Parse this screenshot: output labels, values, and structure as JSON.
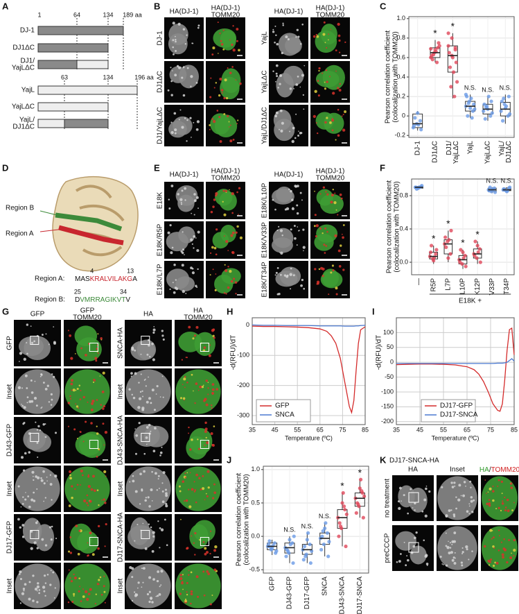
{
  "panel_labels": [
    "A",
    "B",
    "C",
    "D",
    "E",
    "F",
    "G",
    "H",
    "I",
    "J",
    "K"
  ],
  "panel_a": {
    "group1": {
      "positions": [
        "1",
        "64",
        "134",
        "189 aa"
      ],
      "rows": [
        [
          "DJ-1"
        ],
        [
          "DJ1ΔC"
        ],
        [
          "DJ1/",
          "YajLΔC"
        ]
      ]
    },
    "group2": {
      "positions": [
        "63",
        "134",
        "196 aa"
      ],
      "rows": [
        [
          "YajL"
        ],
        [
          "YajLΔC"
        ],
        [
          "YajL/",
          "DJ1ΔC"
        ]
      ]
    }
  },
  "panel_b": {
    "groups": [
      {
        "headers": [
          "HA(DJ-1)",
          "HA(DJ-1)",
          "TOMM20"
        ],
        "rows": [
          "DJ-1",
          "DJ1ΔC",
          "DJ1/YajLΔC"
        ]
      },
      {
        "headers": [
          "HA(DJ-1)",
          "HA(DJ-1)",
          "TOMM20"
        ],
        "rows": [
          "YajL",
          "YajLΔC",
          "YajL/DJ1ΔC"
        ]
      }
    ]
  },
  "panel_d": {
    "callouts": [
      "Region B",
      "Region A"
    ],
    "region_a": {
      "label": "Region A:",
      "start": "4",
      "end": "13",
      "seq": [
        "MAS",
        "KRALVILAKG",
        "A"
      ]
    },
    "region_b": {
      "label": "Region B:",
      "start": "25",
      "end": "34",
      "seq": [
        "D",
        "VMRRAGIKVT",
        "V"
      ]
    }
  },
  "panel_e": {
    "groups": [
      {
        "headers": [
          "HA(DJ-1)",
          "HA(DJ-1)",
          "TOMM20"
        ],
        "rows": [
          "E18K",
          "E18K/R5P",
          "E18K/L7P"
        ]
      },
      {
        "headers": [
          "HA(DJ-1)",
          "HA(DJ-1)",
          "TOMM20"
        ],
        "rows": [
          "E18K/L10P",
          "E18K/V33P",
          "E18K/T34P"
        ]
      }
    ]
  },
  "panel_g": {
    "groups": [
      {
        "headers": [
          "GFP",
          "GFP",
          "TOMM20"
        ],
        "rows": [
          "GFP",
          "Inset",
          "DJ43-GFP",
          "Inset",
          "DJ17-GFP",
          "Inset"
        ]
      },
      {
        "headers": [
          "HA",
          "HA",
          "TOMM20"
        ],
        "rows": [
          "SNCA-HA",
          "Inset",
          "DJ43-SNCA-HA",
          "Inset",
          "DJ17-SNCA-HA",
          "Inset"
        ]
      }
    ]
  },
  "panel_k": {
    "title": "DJ17-SNCA-HA",
    "headers": [
      "HA",
      "Inset",
      "HA",
      "/",
      "TOMM20"
    ],
    "rows": [
      "no treatment",
      "preCCCP"
    ]
  },
  "chart_data": [
    {
      "type": "box",
      "ylabel": [
        "Pearson correlation coefficient",
        "(colocalization with TOMM20)"
      ],
      "categories": [
        [
          "DJ-1"
        ],
        [
          "DJ1ΔC"
        ],
        [
          "DJ1/",
          "YajLΔC"
        ],
        [
          "YajL"
        ],
        [
          "YajLΔC"
        ],
        [
          "YajL/",
          "DJ1ΔC"
        ]
      ],
      "ylim": [
        -0.22,
        1.02
      ],
      "yticks": [
        -0.2,
        0,
        0.2,
        0.4,
        0.6,
        0.8,
        {
          "value": 1,
          "label": "1.0"
        }
      ],
      "grid": true,
      "annotations": [
        {
          "category": 1,
          "text": "*"
        },
        {
          "category": 2,
          "text": "*"
        },
        {
          "category": 3,
          "text": "N.S."
        },
        {
          "category": 4,
          "text": "N.S."
        },
        {
          "category": 5,
          "text": "N.S."
        }
      ],
      "boxes": [
        {
          "color": "#6b9be6",
          "whislo": -0.15,
          "q1": -0.12,
          "med": -0.08,
          "q3": 0.02,
          "whishi": 0.05,
          "points": [
            -0.12,
            -0.08,
            -0.05,
            -0.1,
            0.03,
            -0.14,
            -0.02,
            -0.09
          ]
        },
        {
          "color": "#e0475a",
          "whislo": 0.55,
          "q1": 0.6,
          "med": 0.65,
          "q3": 0.7,
          "whishi": 0.78,
          "points": [
            0.6,
            0.65,
            0.7,
            0.62,
            0.68,
            0.75,
            0.58,
            0.66,
            0.72,
            0.63,
            0.55,
            0.69
          ]
        },
        {
          "color": "#e0475a",
          "whislo": 0.18,
          "q1": 0.45,
          "med": 0.62,
          "q3": 0.72,
          "whishi": 0.85,
          "points": [
            0.85,
            0.8,
            0.7,
            0.65,
            0.6,
            0.55,
            0.5,
            0.45,
            0.35,
            0.3,
            0.2,
            0.72,
            0.62,
            0.68
          ]
        },
        {
          "color": "#6b9be6",
          "whislo": -0.02,
          "q1": 0.05,
          "med": 0.1,
          "q3": 0.15,
          "whishi": 0.22,
          "points": [
            0.1,
            0.15,
            0.05,
            0.2,
            0.08,
            0.12,
            0.0,
            0.18,
            0.07,
            0.13,
            -0.02,
            0.22
          ]
        },
        {
          "color": "#6b9be6",
          "whislo": -0.05,
          "q1": 0.02,
          "med": 0.07,
          "q3": 0.12,
          "whishi": 0.2,
          "points": [
            0.05,
            0.1,
            0.0,
            0.12,
            0.07,
            0.15,
            -0.03,
            0.2,
            0.03,
            0.09
          ]
        },
        {
          "color": "#6b9be6",
          "whislo": -0.08,
          "q1": 0.0,
          "med": 0.07,
          "q3": 0.14,
          "whishi": 0.22,
          "points": [
            0.05,
            0.12,
            0.0,
            0.15,
            0.08,
            0.2,
            -0.05,
            0.1,
            0.02,
            0.18
          ]
        }
      ]
    },
    {
      "type": "box",
      "ylabel": [
        "Pearson correlation coefficient",
        "(colocalization with TOMM20)"
      ],
      "xlabel": "E18K +",
      "categories": [
        [
          "—"
        ],
        [
          "R5P"
        ],
        [
          "L7P"
        ],
        [
          "L10P"
        ],
        [
          "K12P"
        ],
        [
          "V33P"
        ],
        [
          "T34P"
        ]
      ],
      "ylim": [
        -0.15,
        1.0
      ],
      "yticks": [
        {
          "value": 0,
          "label": "0.0"
        },
        0.4,
        0.8
      ],
      "grid": true,
      "annotations": [
        {
          "category": 1,
          "text": "*"
        },
        {
          "category": 2,
          "text": "*"
        },
        {
          "category": 3,
          "text": "*"
        },
        {
          "category": 4,
          "text": "*"
        },
        {
          "category": 5,
          "text": "N.S."
        },
        {
          "category": 6,
          "text": "N.S."
        }
      ],
      "boxes": [
        {
          "color": "#6b9be6",
          "whislo": 0.88,
          "q1": 0.89,
          "med": 0.9,
          "q3": 0.91,
          "whishi": 0.92,
          "points": [
            0.9,
            0.89,
            0.91,
            0.9,
            0.9,
            0.92,
            0.88,
            0.9
          ]
        },
        {
          "color": "#e0475a",
          "whislo": -0.02,
          "q1": 0.04,
          "med": 0.07,
          "q3": 0.12,
          "whishi": 0.2,
          "points": [
            0.07,
            0.04,
            0.1,
            0.12,
            0.02,
            0.15,
            0.2,
            0.06
          ]
        },
        {
          "color": "#e0475a",
          "whislo": 0.0,
          "q1": 0.1,
          "med": 0.22,
          "q3": 0.27,
          "whishi": 0.38,
          "points": [
            0.22,
            0.25,
            0.1,
            0.3,
            0.05,
            0.38,
            0.18,
            0.27
          ]
        },
        {
          "color": "#e0475a",
          "whislo": -0.08,
          "q1": -0.02,
          "med": 0.03,
          "q3": 0.08,
          "whishi": 0.15,
          "points": [
            0.03,
            -0.02,
            0.08,
            0.0,
            0.12,
            -0.05,
            0.15,
            0.05
          ]
        },
        {
          "color": "#e0475a",
          "whislo": -0.02,
          "q1": 0.05,
          "med": 0.1,
          "q3": 0.16,
          "whishi": 0.25,
          "points": [
            0.1,
            0.05,
            0.16,
            0.08,
            0.2,
            0.0,
            0.25,
            0.12
          ]
        },
        {
          "color": "#6b9be6",
          "whislo": 0.83,
          "q1": 0.85,
          "med": 0.87,
          "q3": 0.89,
          "whishi": 0.9,
          "points": [
            0.87,
            0.85,
            0.89,
            0.86,
            0.88,
            0.84,
            0.9,
            0.87
          ]
        },
        {
          "color": "#6b9be6",
          "whislo": 0.84,
          "q1": 0.86,
          "med": 0.87,
          "q3": 0.89,
          "whishi": 0.9,
          "points": [
            0.87,
            0.86,
            0.89,
            0.88,
            0.85,
            0.9,
            0.87,
            0.86
          ]
        }
      ]
    },
    {
      "type": "line",
      "ylabel": "-d(RFU)/dT",
      "xlabel": "Temperature (ºC)",
      "legend": "lower left",
      "grid": true,
      "xlim": [
        35,
        85
      ],
      "xticks": [
        35,
        45,
        55,
        65,
        75,
        85
      ],
      "ylim": [
        -330,
        25
      ],
      "yticks": [
        0,
        -100,
        -200,
        -300
      ],
      "x": [
        35,
        40,
        45,
        50,
        55,
        60,
        65,
        68,
        70,
        72,
        74,
        76,
        78,
        79,
        80,
        81,
        82,
        83,
        85
      ],
      "series": [
        {
          "name": "GFP",
          "color": "#d42a2a",
          "values": [
            -3,
            -4,
            -4,
            -5,
            -6,
            -8,
            -12,
            -20,
            -35,
            -60,
            -110,
            -190,
            -270,
            -290,
            -250,
            -150,
            -60,
            -15,
            -5
          ]
        },
        {
          "name": "SNCA",
          "color": "#4a78d0",
          "values": [
            1,
            0,
            0,
            -1,
            -1,
            -1,
            -2,
            -2,
            -2,
            -2,
            -2,
            -3,
            -3,
            -3,
            -3,
            -2,
            -2,
            -1,
            0
          ]
        }
      ]
    },
    {
      "type": "line",
      "ylabel": "-d(RFU)/dT",
      "xlabel": "Temperature (ºC)",
      "legend": "lower center",
      "grid": true,
      "xlim": [
        35,
        85
      ],
      "xticks": [
        35,
        45,
        55,
        65,
        75,
        85
      ],
      "ylim": [
        -210,
        150
      ],
      "yticks": [
        100,
        50,
        0,
        -50,
        -100,
        -150,
        -200
      ],
      "x": [
        35,
        40,
        45,
        50,
        55,
        60,
        65,
        68,
        70,
        72,
        74,
        76,
        78,
        79,
        80,
        81,
        82,
        83,
        84,
        85
      ],
      "series": [
        {
          "name": "DJ17-GFP",
          "color": "#d42a2a",
          "values": [
            -8,
            -7,
            -6,
            -6,
            -7,
            -9,
            -15,
            -25,
            -40,
            -65,
            -100,
            -140,
            -162,
            -165,
            -140,
            -60,
            40,
            110,
            115,
            25
          ]
        },
        {
          "name": "DJ17-SNCA",
          "color": "#4a78d0",
          "values": [
            -4,
            -4,
            -4,
            -4,
            -4,
            -4,
            -4,
            -4,
            -4,
            -4,
            -4,
            -4,
            -3,
            -3,
            -3,
            -2,
            0,
            6,
            12,
            4
          ]
        }
      ]
    },
    {
      "type": "box",
      "ylabel": [
        "Pearson correlation coefficient",
        "(colocalization with TOMM20)"
      ],
      "categories": [
        [
          "GFP"
        ],
        [
          "DJ43-GFP"
        ],
        [
          "DJ17-GFP"
        ],
        [
          "SNCA"
        ],
        [
          "DJ43-SNCA"
        ],
        [
          "DJ17-SNCA"
        ]
      ],
      "ylim": [
        -0.55,
        1.05
      ],
      "yticks": [
        -0.5,
        {
          "value": 0,
          "label": "0.0"
        },
        0.5,
        {
          "value": 1,
          "label": "1.0"
        }
      ],
      "grid": true,
      "annotations": [
        {
          "category": 1,
          "text": "N.S."
        },
        {
          "category": 2,
          "text": "N.S."
        },
        {
          "category": 3,
          "text": "N.S."
        },
        {
          "category": 4,
          "text": "*"
        },
        {
          "category": 5,
          "text": "*"
        }
      ],
      "boxes": [
        {
          "color": "#6b9be6",
          "whislo": -0.28,
          "q1": -0.2,
          "med": -0.15,
          "q3": -0.1,
          "whishi": -0.05,
          "points": [
            -0.15,
            -0.2,
            -0.1,
            -0.12,
            -0.18,
            -0.25,
            -0.07,
            -0.14,
            -0.22,
            -0.16
          ]
        },
        {
          "color": "#6b9be6",
          "whislo": -0.4,
          "q1": -0.25,
          "med": -0.17,
          "q3": -0.1,
          "whishi": 0.0,
          "points": [
            -0.17,
            -0.25,
            -0.1,
            -0.3,
            -0.05,
            -0.4,
            -0.2,
            -0.12,
            0.0,
            -0.22
          ]
        },
        {
          "color": "#6b9be6",
          "whislo": -0.4,
          "q1": -0.27,
          "med": -0.2,
          "q3": -0.12,
          "whishi": 0.05,
          "points": [
            -0.2,
            -0.27,
            -0.12,
            -0.35,
            -0.05,
            -0.4,
            -0.15,
            0.05,
            -0.22,
            -0.3
          ]
        },
        {
          "color": "#6b9be6",
          "whislo": -0.3,
          "q1": -0.12,
          "med": -0.03,
          "q3": 0.05,
          "whishi": 0.2,
          "points": [
            -0.03,
            -0.12,
            0.05,
            -0.2,
            0.12,
            -0.3,
            0.0,
            0.2,
            -0.08,
            0.08
          ]
        },
        {
          "color": "#e0475a",
          "whislo": -0.15,
          "q1": 0.12,
          "med": 0.28,
          "q3": 0.4,
          "whishi": 0.65,
          "points": [
            0.28,
            0.12,
            0.4,
            0.0,
            0.5,
            -0.15,
            0.2,
            0.65,
            0.33,
            0.15,
            0.45
          ]
        },
        {
          "color": "#e0475a",
          "whislo": 0.28,
          "q1": 0.45,
          "med": 0.57,
          "q3": 0.65,
          "whishi": 0.85,
          "points": [
            0.57,
            0.45,
            0.65,
            0.35,
            0.72,
            0.28,
            0.5,
            0.85,
            0.6,
            0.48,
            0.68
          ]
        }
      ]
    }
  ]
}
